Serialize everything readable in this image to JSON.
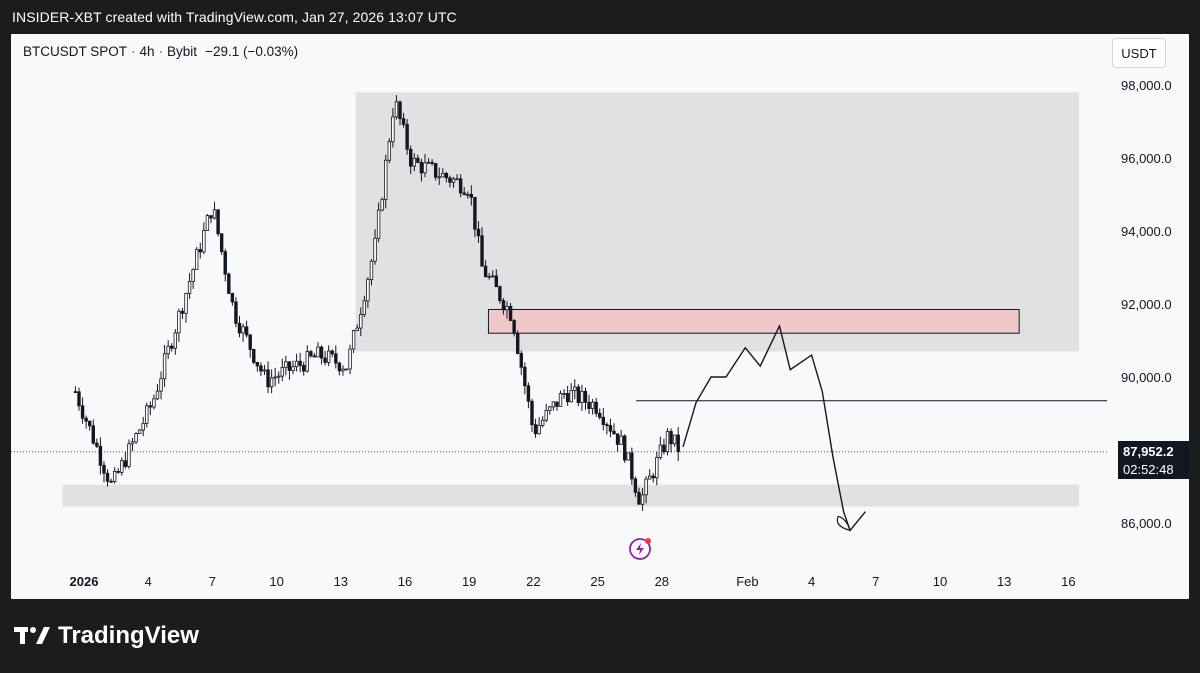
{
  "caption": "INSIDER-XBT created with TradingView.com, Jan 27, 2026 13:07 UTC",
  "symbol": {
    "name": "BTCUSDT SPOT",
    "interval": "4h",
    "exchange": "Bybit",
    "change": "−29.1 (−0.03%)"
  },
  "currency_label": "USDT",
  "last_price": "87,952.2",
  "countdown": "02:52:48",
  "brand": "TradingView",
  "colors": {
    "up": "#131722",
    "down": "#131722",
    "zone_gray": "#dfe1e3",
    "zone_red": "#f0c8ca",
    "zone_red_border": "#131722"
  },
  "chart_data": {
    "type": "candlestick",
    "ylim": [
      84800,
      98500
    ],
    "y_ticks": [
      "98,000.0",
      "96,000.0",
      "94,000.0",
      "92,000.0",
      "90,000.0",
      "86,000.0"
    ],
    "y_tick_values": [
      98000,
      96000,
      94000,
      92000,
      90000,
      86000
    ],
    "x_ticks": [
      "2026",
      "4",
      "7",
      "10",
      "13",
      "16",
      "19",
      "22",
      "25",
      "28",
      "Feb",
      "4",
      "7",
      "10",
      "13",
      "16"
    ],
    "x_tick_days": [
      0,
      3,
      6,
      9,
      12,
      15,
      18,
      21,
      24,
      27,
      31,
      34,
      37,
      40,
      43,
      46
    ],
    "last_price": 87952.2,
    "key_points": [
      {
        "day": -0.4,
        "price": 89600
      },
      {
        "day": 1.3,
        "price": 87000
      },
      {
        "day": 3.2,
        "price": 89300
      },
      {
        "day": 6.0,
        "price": 94700
      },
      {
        "day": 7.0,
        "price": 91800
      },
      {
        "day": 8.5,
        "price": 89900
      },
      {
        "day": 11.0,
        "price": 90600
      },
      {
        "day": 12.3,
        "price": 90300
      },
      {
        "day": 13.6,
        "price": 93600
      },
      {
        "day": 14.5,
        "price": 97600
      },
      {
        "day": 15.3,
        "price": 95900
      },
      {
        "day": 18.0,
        "price": 95200
      },
      {
        "day": 18.6,
        "price": 93000
      },
      {
        "day": 20.0,
        "price": 91700
      },
      {
        "day": 21.0,
        "price": 88500
      },
      {
        "day": 22.5,
        "price": 89600
      },
      {
        "day": 24.0,
        "price": 89200
      },
      {
        "day": 25.2,
        "price": 88100
      },
      {
        "day": 26.0,
        "price": 86600
      },
      {
        "day": 27.3,
        "price": 88400
      },
      {
        "day": 27.9,
        "price": 87952
      }
    ],
    "zones": [
      {
        "kind": "gray",
        "day_from": 12.7,
        "day_to": 46.5,
        "price_from": 90700,
        "price_to": 97800
      },
      {
        "kind": "red",
        "day_from": 18.9,
        "day_to": 43.7,
        "price_from": 91200,
        "price_to": 91850
      },
      {
        "kind": "gray",
        "day_from": -1.0,
        "day_to": 46.5,
        "price_from": 86450,
        "price_to": 87050
      }
    ],
    "hline": {
      "price": 89350,
      "day_from": 25.8,
      "day_to": 46.5
    },
    "projection": [
      {
        "day": 28.0,
        "price": 88100
      },
      {
        "day": 28.6,
        "price": 89300
      },
      {
        "day": 29.3,
        "price": 90000
      },
      {
        "day": 30.0,
        "price": 90000
      },
      {
        "day": 30.9,
        "price": 90800
      },
      {
        "day": 31.6,
        "price": 90300
      },
      {
        "day": 32.5,
        "price": 91400
      },
      {
        "day": 33.0,
        "price": 90200
      },
      {
        "day": 34.0,
        "price": 90600
      },
      {
        "day": 34.5,
        "price": 89600
      },
      {
        "day": 35.0,
        "price": 87800
      },
      {
        "day": 35.5,
        "price": 86300
      },
      {
        "day": 35.8,
        "price": 85800
      },
      {
        "day": 36.5,
        "price": 86300
      }
    ]
  }
}
